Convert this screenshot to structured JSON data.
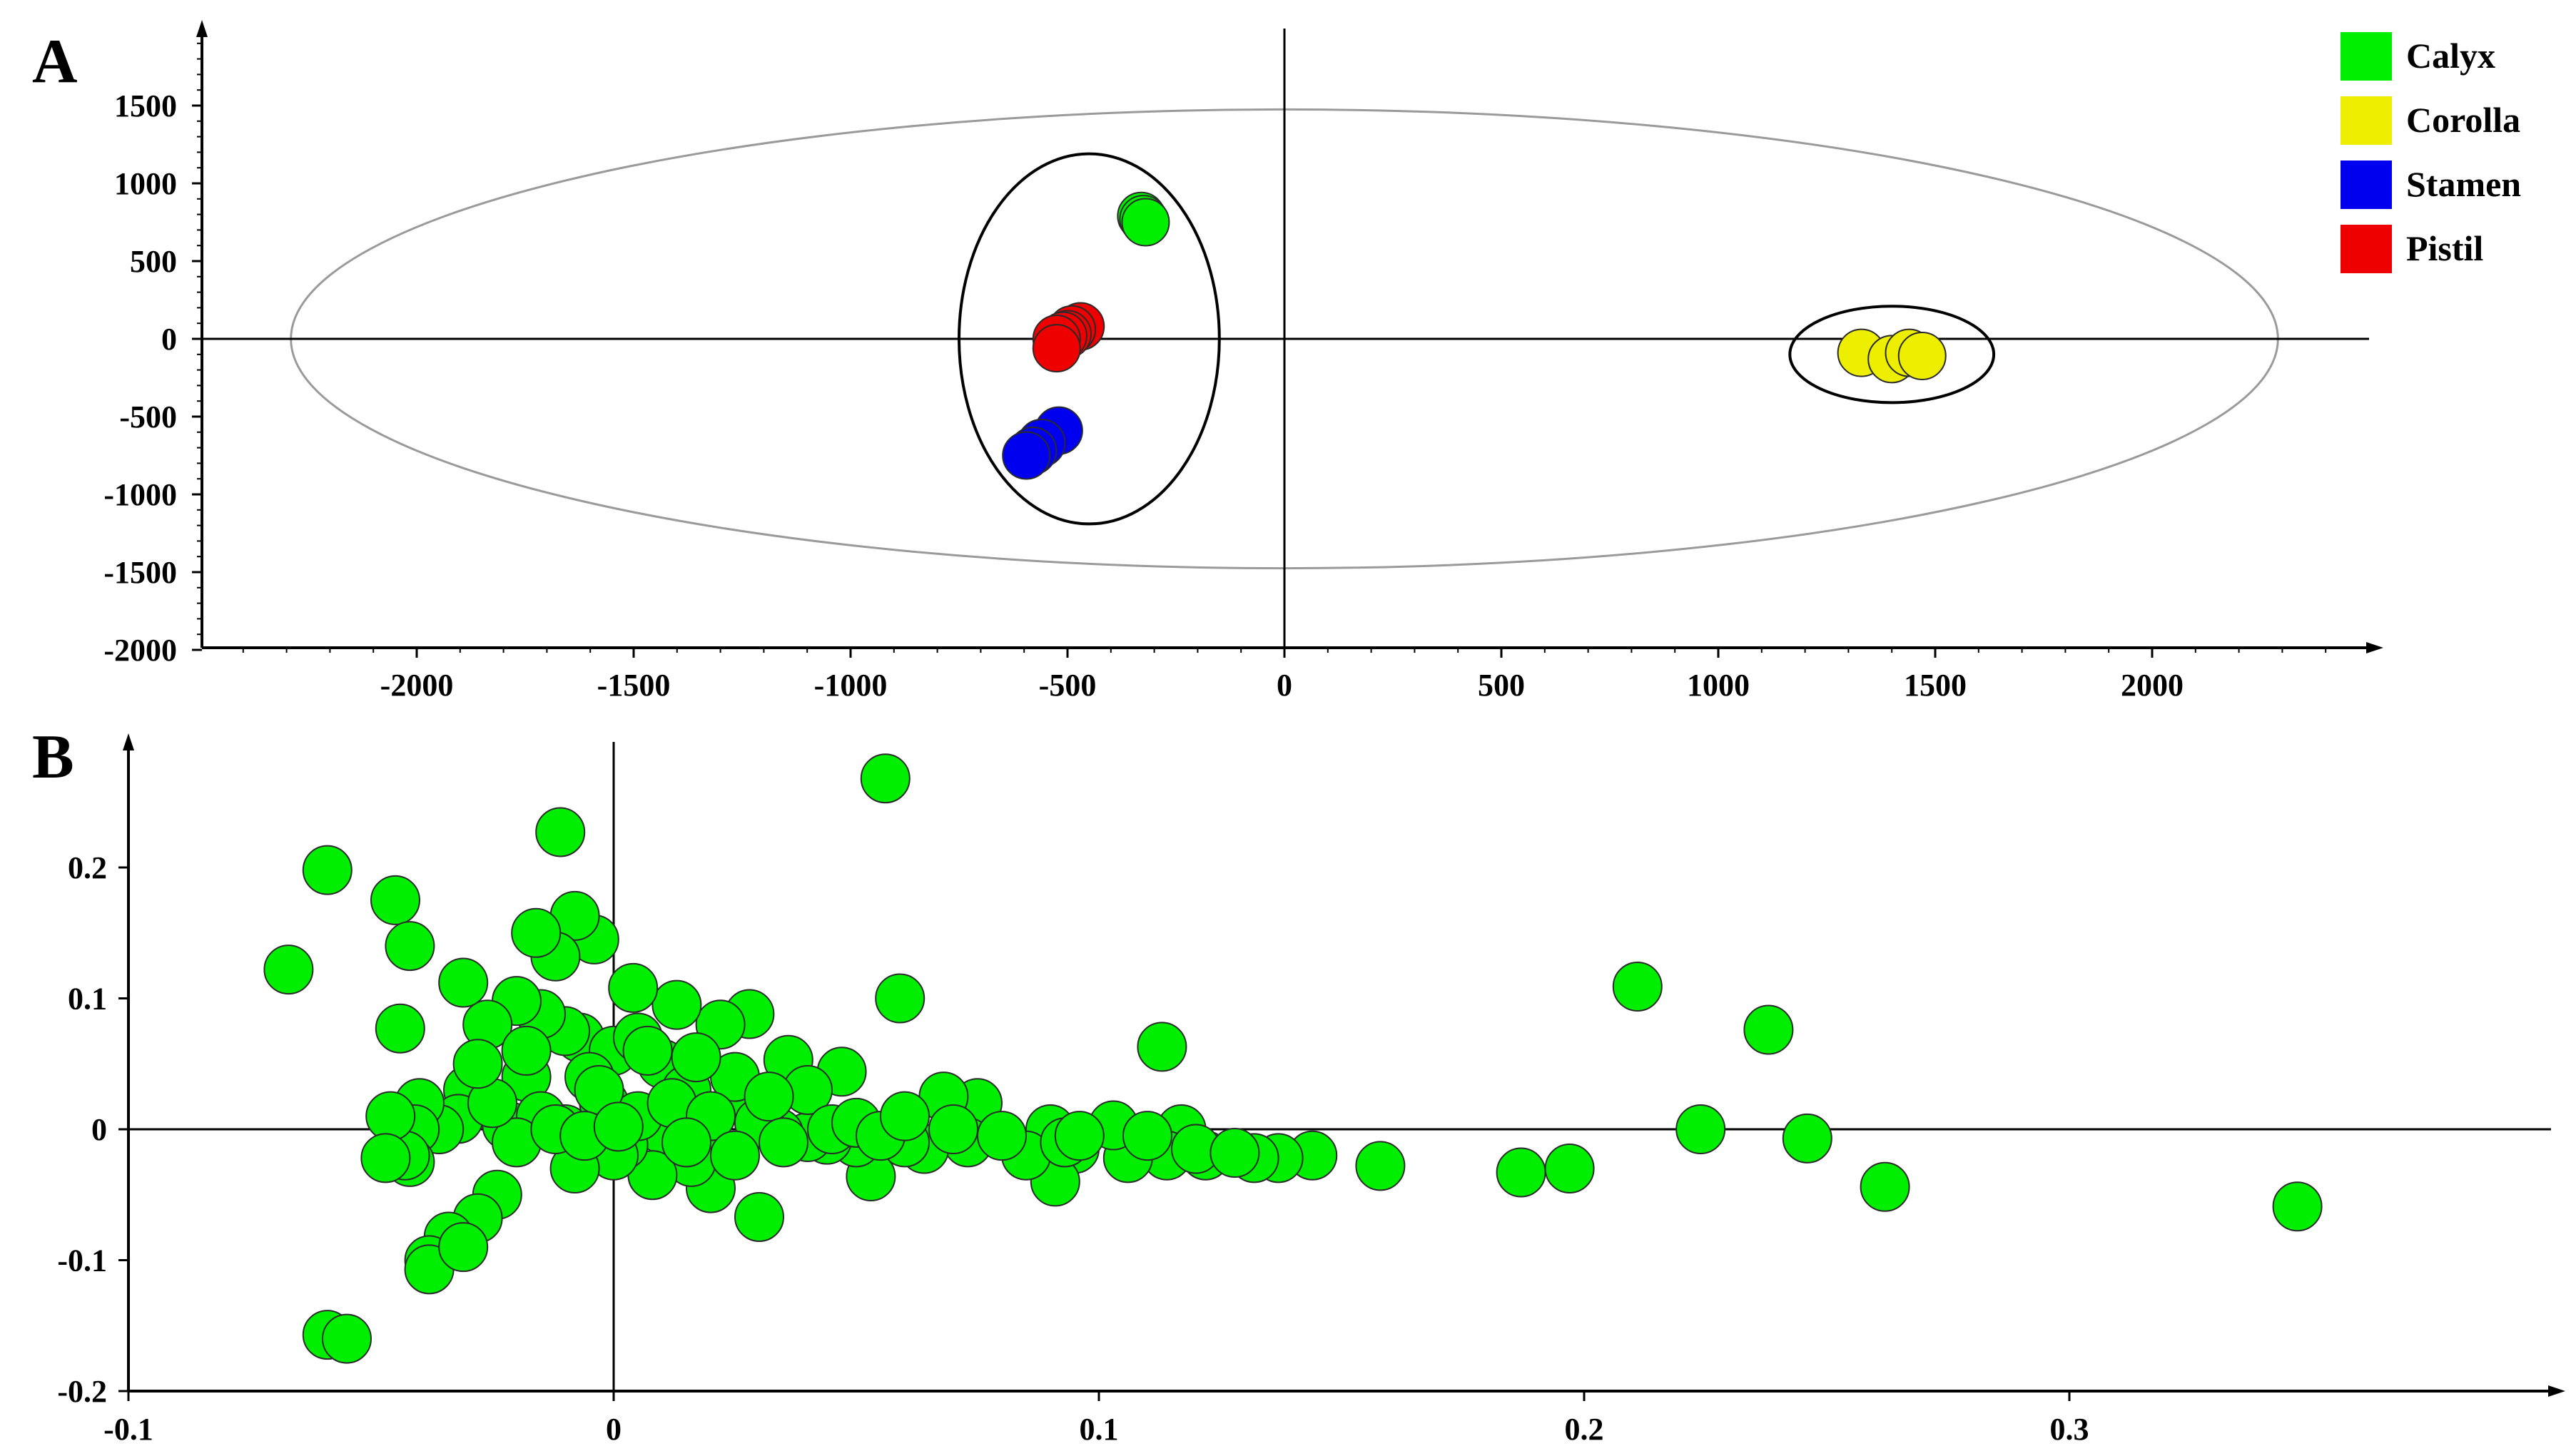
{
  "chart_data": [
    {
      "panel": "A",
      "type": "scatter",
      "title": "",
      "xlabel": "",
      "ylabel": "",
      "xlim": [
        -2500,
        2500
      ],
      "ylim": [
        -2000,
        2000
      ],
      "x_ticks": [
        -2000,
        -1500,
        -1000,
        -500,
        0,
        500,
        1000,
        1500,
        2000
      ],
      "y_ticks": [
        1500,
        1000,
        500,
        0,
        -500,
        -1000,
        -1500,
        -2000
      ],
      "legend": {
        "placement": "top-right",
        "entries": [
          "Calyx",
          "Corolla",
          "Stamen",
          "Pistil"
        ]
      },
      "confidence_ellipse": {
        "center": [
          0,
          0
        ],
        "rx": 2290,
        "ry": 1490
      },
      "group_ellipses": [
        {
          "center": [
            -450,
            0
          ],
          "rx": 300,
          "ry": 1190
        },
        {
          "center": [
            1400,
            -100
          ],
          "rx": 235,
          "ry": 310
        }
      ],
      "series": [
        {
          "name": "Calyx",
          "color": "#00ee00",
          "x": [
            -330,
            -325,
            -320
          ],
          "y": [
            790,
            770,
            750
          ]
        },
        {
          "name": "Corolla",
          "color": "#eeee00",
          "x": [
            1330,
            1400,
            1440,
            1470
          ],
          "y": [
            -90,
            -130,
            -90,
            -110
          ]
        },
        {
          "name": "Stamen",
          "color": "#0000ee",
          "x": [
            -520,
            -560,
            -580,
            -595
          ],
          "y": [
            -590,
            -670,
            -720,
            -750
          ]
        },
        {
          "name": "Pistil",
          "color": "#ee0000",
          "x": [
            -470,
            -490,
            -500,
            -510,
            -525,
            -525
          ],
          "y": [
            80,
            60,
            30,
            20,
            0,
            -60
          ]
        }
      ]
    },
    {
      "panel": "B",
      "type": "scatter",
      "title": "",
      "xlabel": "",
      "ylabel": "",
      "xlim": [
        -0.1,
        0.4
      ],
      "ylim": [
        -0.2,
        0.29
      ],
      "x_ticks": [
        "-0.1",
        "0",
        "0.1",
        "0.2",
        "0.3"
      ],
      "y_ticks": [
        "0.2",
        "0.1",
        "0",
        "-0.1",
        "-0.2"
      ],
      "point_color": "#00ee00",
      "points": [
        [
          -0.067,
          0.122
        ],
        [
          -0.059,
          0.198
        ],
        [
          -0.045,
          0.175
        ],
        [
          -0.044,
          0.077
        ],
        [
          -0.042,
          0.14
        ],
        [
          -0.011,
          0.227
        ],
        [
          0.056,
          0.268
        ],
        [
          0.059,
          0.1
        ],
        [
          0.113,
          0.063
        ],
        [
          0.211,
          0.109
        ],
        [
          0.238,
          0.076
        ],
        [
          0.224,
          0.0
        ],
        [
          0.246,
          -0.007
        ],
        [
          0.262,
          -0.044
        ],
        [
          0.347,
          -0.059
        ],
        [
          0.197,
          -0.03
        ],
        [
          0.187,
          -0.033
        ],
        [
          0.158,
          -0.028
        ],
        [
          0.144,
          -0.02
        ],
        [
          0.137,
          -0.022
        ],
        [
          0.132,
          -0.022
        ],
        [
          0.122,
          -0.02
        ],
        [
          0.117,
          0.0
        ],
        [
          0.114,
          -0.02
        ],
        [
          0.106,
          -0.022
        ],
        [
          0.103,
          0.003
        ],
        [
          0.095,
          -0.015
        ],
        [
          0.09,
          0.0
        ],
        [
          0.091,
          -0.04
        ],
        [
          0.085,
          -0.02
        ],
        [
          0.075,
          0.02
        ],
        [
          0.073,
          -0.01
        ],
        [
          0.068,
          0.025
        ],
        [
          0.064,
          -0.015
        ],
        [
          0.06,
          -0.01
        ],
        [
          0.053,
          -0.036
        ],
        [
          0.05,
          -0.01
        ],
        [
          0.047,
          0.044
        ],
        [
          0.044,
          -0.008
        ],
        [
          0.04,
          -0.006
        ],
        [
          0.036,
          0.053
        ],
        [
          0.034,
          -0.003
        ],
        [
          0.03,
          -0.067
        ],
        [
          0.028,
          0.088
        ],
        [
          0.026,
          0.025
        ],
        [
          0.022,
          0.08
        ],
        [
          0.02,
          -0.045
        ],
        [
          0.018,
          0.0
        ],
        [
          0.016,
          -0.025
        ],
        [
          0.013,
          0.095
        ],
        [
          0.01,
          0.0
        ],
        [
          0.008,
          -0.035
        ],
        [
          0.004,
          0.108
        ],
        [
          0.002,
          -0.012
        ],
        [
          -0.002,
          0.02
        ],
        [
          -0.004,
          0.145
        ],
        [
          -0.007,
          0.07
        ],
        [
          -0.008,
          0.163
        ],
        [
          -0.01,
          0.0
        ],
        [
          -0.01,
          0.075
        ],
        [
          -0.012,
          0.132
        ],
        [
          -0.015,
          0.088
        ],
        [
          -0.016,
          0.15
        ],
        [
          -0.018,
          0.04
        ],
        [
          -0.02,
          0.098
        ],
        [
          -0.022,
          0.003
        ],
        [
          -0.024,
          -0.05
        ],
        [
          -0.026,
          0.08
        ],
        [
          -0.028,
          -0.068
        ],
        [
          -0.03,
          0.03
        ],
        [
          -0.031,
          0.112
        ],
        [
          -0.032,
          0.008
        ],
        [
          -0.034,
          -0.082
        ],
        [
          -0.036,
          0.0
        ],
        [
          -0.038,
          -0.1
        ],
        [
          -0.04,
          0.02
        ],
        [
          -0.041,
          0.0
        ],
        [
          -0.042,
          -0.025
        ],
        [
          -0.043,
          -0.02
        ],
        [
          -0.046,
          0.01
        ],
        [
          -0.047,
          -0.022
        ],
        [
          -0.059,
          -0.157
        ],
        [
          -0.055,
          -0.16
        ],
        [
          -0.038,
          -0.107
        ],
        [
          -0.031,
          -0.09
        ],
        [
          0.0,
          0.06
        ],
        [
          0.005,
          0.07
        ],
        [
          -0.005,
          0.04
        ],
        [
          0.01,
          0.05
        ],
        [
          0.015,
          0.03
        ],
        [
          0.025,
          0.04
        ],
        [
          -0.015,
          0.01
        ],
        [
          -0.02,
          -0.01
        ],
        [
          0.0,
          -0.02
        ],
        [
          0.005,
          0.01
        ],
        [
          -0.008,
          -0.03
        ],
        [
          0.012,
          0.02
        ],
        [
          0.02,
          0.01
        ],
        [
          -0.012,
          0.0
        ],
        [
          0.03,
          0.005
        ],
        [
          -0.025,
          0.02
        ],
        [
          0.015,
          -0.01
        ],
        [
          0.04,
          0.03
        ],
        [
          0.045,
          0.0
        ],
        [
          0.05,
          0.005
        ],
        [
          0.055,
          -0.005
        ],
        [
          0.06,
          0.01
        ],
        [
          0.07,
          0.0
        ],
        [
          0.08,
          -0.005
        ],
        [
          0.093,
          -0.01
        ],
        [
          0.096,
          -0.005
        ],
        [
          0.11,
          -0.005
        ],
        [
          0.12,
          -0.015
        ],
        [
          0.128,
          -0.018
        ],
        [
          -0.018,
          0.06
        ],
        [
          0.007,
          0.06
        ],
        [
          0.017,
          0.055
        ],
        [
          -0.003,
          0.03
        ],
        [
          0.025,
          -0.02
        ],
        [
          0.032,
          0.025
        ],
        [
          -0.028,
          0.05
        ],
        [
          0.035,
          -0.01
        ],
        [
          -0.006,
          -0.005
        ],
        [
          0.001,
          0.002
        ]
      ]
    }
  ]
}
